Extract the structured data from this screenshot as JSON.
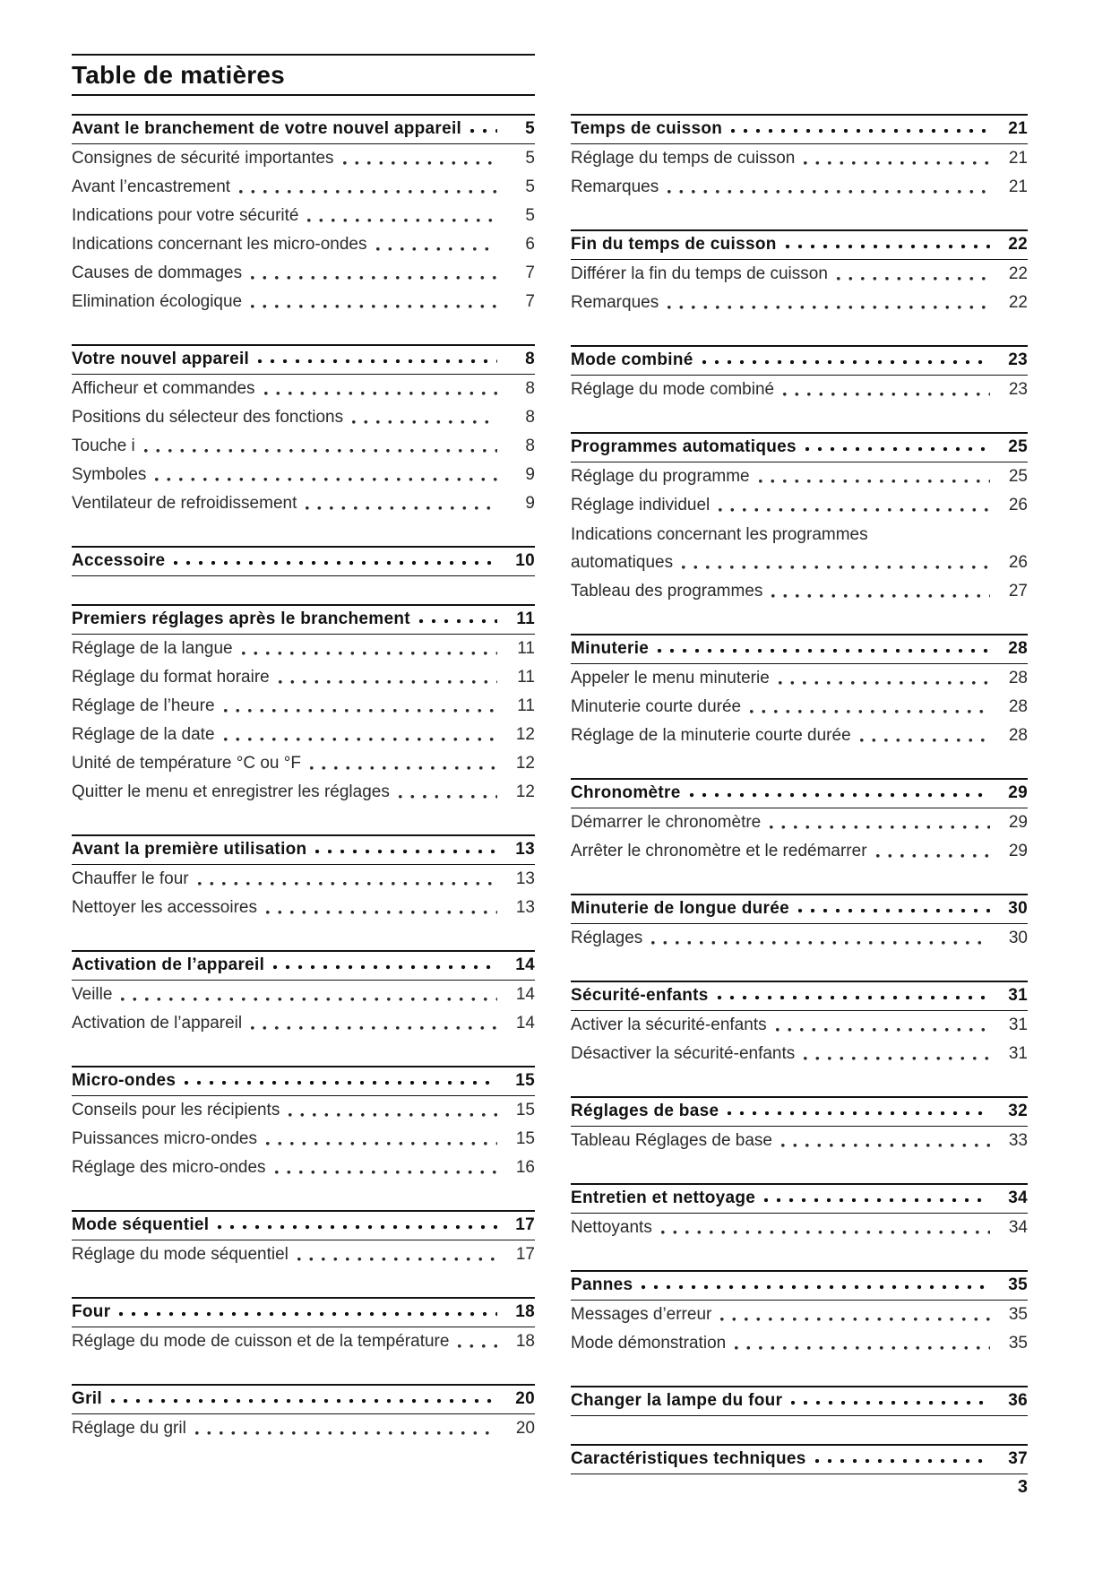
{
  "page": {
    "title": "Table de matières",
    "page_number": "3"
  },
  "colors": {
    "background": "#ffffff",
    "text": "#1a1a1a",
    "rule": "#111111"
  },
  "columns": {
    "left": [
      {
        "heading": "Avant le branchement de votre nouvel appareil",
        "page": "5",
        "entries": [
          {
            "label": "Consignes de sécurité importantes",
            "page": "5"
          },
          {
            "label": "Avant l’encastrement",
            "page": "5"
          },
          {
            "label": "Indications pour votre sécurité",
            "page": "5"
          },
          {
            "label": "Indications concernant les micro-ondes",
            "page": "6"
          },
          {
            "label": "Causes de dommages",
            "page": "7"
          },
          {
            "label": "Elimination écologique",
            "page": "7"
          }
        ]
      },
      {
        "heading": "Votre nouvel appareil",
        "page": "8",
        "entries": [
          {
            "label": "Afficheur et commandes",
            "page": "8"
          },
          {
            "label": "Positions du sélecteur des fonctions",
            "page": "8"
          },
          {
            "label": "Touche i",
            "page": "8"
          },
          {
            "label": "Symboles",
            "page": "9"
          },
          {
            "label": "Ventilateur de refroidissement",
            "page": "9"
          }
        ]
      },
      {
        "heading": "Accessoire",
        "page": "10",
        "entries": []
      },
      {
        "heading": "Premiers réglages après le branchement",
        "page": "11",
        "entries": [
          {
            "label": "Réglage de la langue",
            "page": "11"
          },
          {
            "label": "Réglage du format horaire",
            "page": "11"
          },
          {
            "label": "Réglage de l’heure",
            "page": "11"
          },
          {
            "label": "Réglage de la date",
            "page": "12"
          },
          {
            "label": "Unité de température °C ou °F",
            "page": "12"
          },
          {
            "label": "Quitter le menu et enregistrer les réglages",
            "page": "12"
          }
        ]
      },
      {
        "heading": "Avant la première utilisation",
        "page": "13",
        "entries": [
          {
            "label": "Chauffer le four",
            "page": "13"
          },
          {
            "label": "Nettoyer les accessoires",
            "page": "13"
          }
        ]
      },
      {
        "heading": "Activation de l’appareil",
        "page": "14",
        "entries": [
          {
            "label": "Veille",
            "page": "14"
          },
          {
            "label": "Activation de l’appareil",
            "page": "14"
          }
        ]
      },
      {
        "heading": "Micro-ondes",
        "page": "15",
        "entries": [
          {
            "label": "Conseils pour les récipients",
            "page": "15"
          },
          {
            "label": "Puissances micro-ondes",
            "page": "15"
          },
          {
            "label": "Réglage des micro-ondes",
            "page": "16"
          }
        ]
      },
      {
        "heading": "Mode séquentiel",
        "page": "17",
        "entries": [
          {
            "label": "Réglage du mode séquentiel",
            "page": "17"
          }
        ]
      },
      {
        "heading": "Four",
        "page": "18",
        "entries": [
          {
            "label": "Réglage du mode de cuisson et de la température",
            "page": "18"
          }
        ]
      },
      {
        "heading": "Gril",
        "page": "20",
        "entries": [
          {
            "label": "Réglage du gril",
            "page": "20"
          }
        ]
      }
    ],
    "right": [
      {
        "heading": "Temps de cuisson",
        "page": "21",
        "entries": [
          {
            "label": "Réglage du temps de cuisson",
            "page": "21"
          },
          {
            "label": "Remarques",
            "page": "21"
          }
        ]
      },
      {
        "heading": "Fin du temps de cuisson",
        "page": "22",
        "entries": [
          {
            "label": "Différer la fin du temps de cuisson",
            "page": "22"
          },
          {
            "label": "Remarques",
            "page": "22"
          }
        ]
      },
      {
        "heading": "Mode combiné",
        "page": "23",
        "entries": [
          {
            "label": "Réglage du mode combiné",
            "page": "23"
          }
        ]
      },
      {
        "heading": "Programmes automatiques",
        "page": "25",
        "entries": [
          {
            "label": "Réglage du programme",
            "page": "25"
          },
          {
            "label": "Réglage individuel",
            "page": "26"
          },
          {
            "label_line1": "Indications concernant les programmes",
            "label": "automatiques",
            "page": "26"
          },
          {
            "label": "Tableau des programmes",
            "page": "27"
          }
        ]
      },
      {
        "heading": "Minuterie",
        "page": "28",
        "entries": [
          {
            "label": "Appeler le menu minuterie",
            "page": "28"
          },
          {
            "label": "Minuterie courte durée",
            "page": "28"
          },
          {
            "label": "Réglage de la minuterie courte durée",
            "page": "28"
          }
        ]
      },
      {
        "heading": "Chronomètre",
        "page": "29",
        "entries": [
          {
            "label": "Démarrer le chronomètre",
            "page": "29"
          },
          {
            "label": "Arrêter le chronomètre et le redémarrer",
            "page": "29"
          }
        ]
      },
      {
        "heading": "Minuterie de longue durée",
        "page": "30",
        "entries": [
          {
            "label": "Réglages",
            "page": "30"
          }
        ]
      },
      {
        "heading": "Sécurité-enfants",
        "page": "31",
        "entries": [
          {
            "label": "Activer la sécurité-enfants",
            "page": "31"
          },
          {
            "label": "Désactiver la sécurité-enfants",
            "page": "31"
          }
        ]
      },
      {
        "heading": "Réglages de base",
        "page": "32",
        "entries": [
          {
            "label": "Tableau Réglages de base",
            "page": "33"
          }
        ]
      },
      {
        "heading": "Entretien et nettoyage",
        "page": "34",
        "entries": [
          {
            "label": "Nettoyants",
            "page": "34"
          }
        ]
      },
      {
        "heading": "Pannes",
        "page": "35",
        "entries": [
          {
            "label": "Messages d’erreur",
            "page": "35"
          },
          {
            "label": "Mode démonstration",
            "page": "35"
          }
        ]
      },
      {
        "heading": "Changer la lampe du four",
        "page": "36",
        "entries": []
      },
      {
        "heading": "Caractéristiques techniques",
        "page": "37",
        "entries": []
      }
    ]
  }
}
